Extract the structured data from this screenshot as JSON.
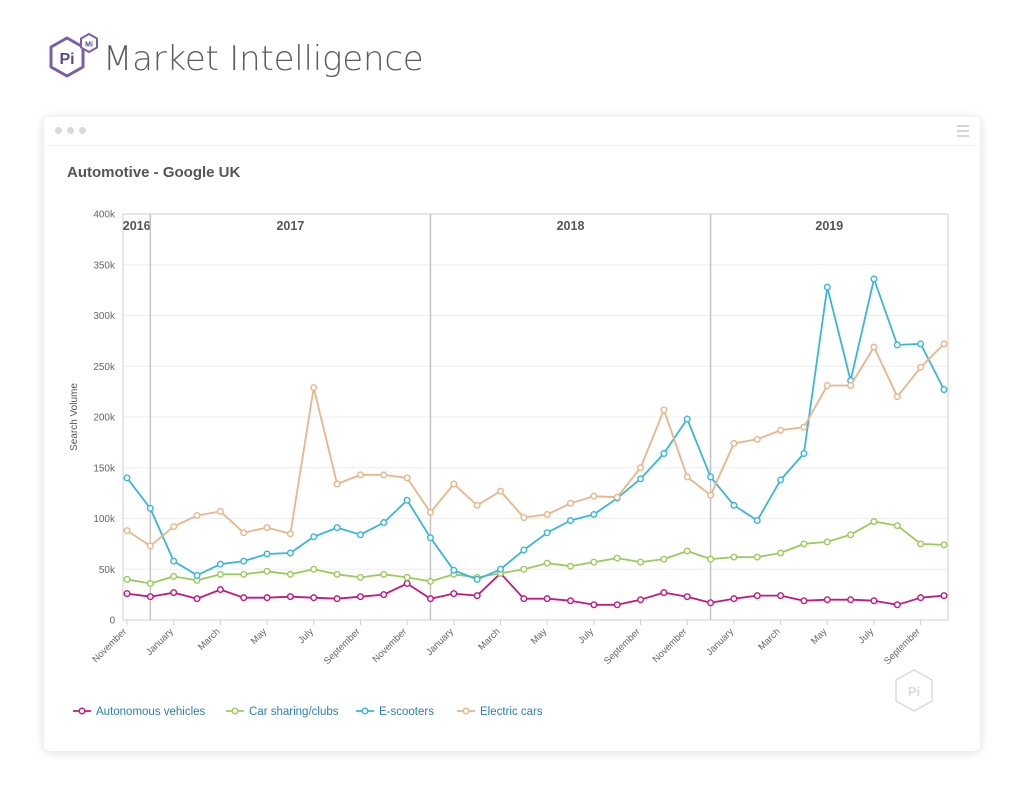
{
  "brand": {
    "logo_text": "Pi",
    "logo_badge": "Mi",
    "name": "Market Intelligence"
  },
  "colors": {
    "accent": "#7b5ea7"
  },
  "window": {
    "dots": 3,
    "menu_icon": "hamburger-icon"
  },
  "chart_data": {
    "type": "line",
    "title": "Automotive - Google UK",
    "ylabel": "Search Volume",
    "xlabel": "",
    "ylim": [
      0,
      400000
    ],
    "ytick_labels": [
      "0",
      "50k",
      "100k",
      "150k",
      "200k",
      "250k",
      "300k",
      "350k",
      "400k"
    ],
    "x_tick_labels": [
      "November",
      "January",
      "March",
      "May",
      "July",
      "September",
      "November",
      "January",
      "March",
      "May",
      "July",
      "September",
      "November",
      "January",
      "March",
      "May",
      "July",
      "September"
    ],
    "year_bands": [
      {
        "label": "2016",
        "start": 0,
        "end": 1
      },
      {
        "label": "2017",
        "start": 1,
        "end": 13
      },
      {
        "label": "2018",
        "start": 13,
        "end": 25
      },
      {
        "label": "2019",
        "start": 25,
        "end": 35
      }
    ],
    "x": [
      "2016-11",
      "2016-12",
      "2017-01",
      "2017-02",
      "2017-03",
      "2017-04",
      "2017-05",
      "2017-06",
      "2017-07",
      "2017-08",
      "2017-09",
      "2017-10",
      "2017-11",
      "2017-12",
      "2018-01",
      "2018-02",
      "2018-03",
      "2018-04",
      "2018-05",
      "2018-06",
      "2018-07",
      "2018-08",
      "2018-09",
      "2018-10",
      "2018-11",
      "2018-12",
      "2019-01",
      "2019-02",
      "2019-03",
      "2019-04",
      "2019-05",
      "2019-06",
      "2019-07",
      "2019-08",
      "2019-09",
      "2019-10"
    ],
    "series": [
      {
        "name": "Autonomous vehicles",
        "color": "#c2187f",
        "values": [
          26000,
          23000,
          27000,
          21000,
          30000,
          22000,
          22000,
          23000,
          22000,
          21000,
          23000,
          25000,
          36000,
          21000,
          26000,
          24000,
          46000,
          21000,
          21000,
          19000,
          15000,
          15000,
          20000,
          27000,
          23000,
          17000,
          21000,
          24000,
          24000,
          19000,
          20000,
          20000,
          19000,
          15000,
          22000,
          24000
        ]
      },
      {
        "name": "Car sharing/clubs",
        "color": "#9bcb5a",
        "values": [
          40000,
          36000,
          43000,
          39000,
          45000,
          45000,
          48000,
          45000,
          50000,
          45000,
          42000,
          45000,
          42000,
          38000,
          45000,
          42000,
          46000,
          50000,
          56000,
          53000,
          57000,
          61000,
          57000,
          60000,
          68000,
          60000,
          62000,
          62000,
          66000,
          75000,
          77000,
          84000,
          97000,
          93000,
          75000,
          74000
        ]
      },
      {
        "name": "E-scooters",
        "color": "#3ab6dc",
        "values": [
          140000,
          110000,
          58000,
          44000,
          55000,
          58000,
          65000,
          66000,
          82000,
          91000,
          84000,
          96000,
          118000,
          81000,
          49000,
          40000,
          50000,
          69000,
          86000,
          98000,
          104000,
          120000,
          139000,
          164000,
          198000,
          141000,
          113000,
          98000,
          138000,
          164000,
          328000,
          236000,
          336000,
          271000,
          272000,
          227000
        ]
      },
      {
        "name": "Electric cars",
        "color": "#eab588",
        "values": [
          88000,
          73000,
          92000,
          103000,
          107000,
          86000,
          91000,
          85000,
          229000,
          134000,
          143000,
          143000,
          140000,
          106000,
          134000,
          113000,
          127000,
          101000,
          104000,
          115000,
          122000,
          121000,
          150000,
          207000,
          141000,
          123000,
          174000,
          178000,
          187000,
          190000,
          231000,
          231000,
          269000,
          220000,
          249000,
          272000
        ]
      }
    ],
    "legend_position": "bottom-left",
    "grid": true
  }
}
